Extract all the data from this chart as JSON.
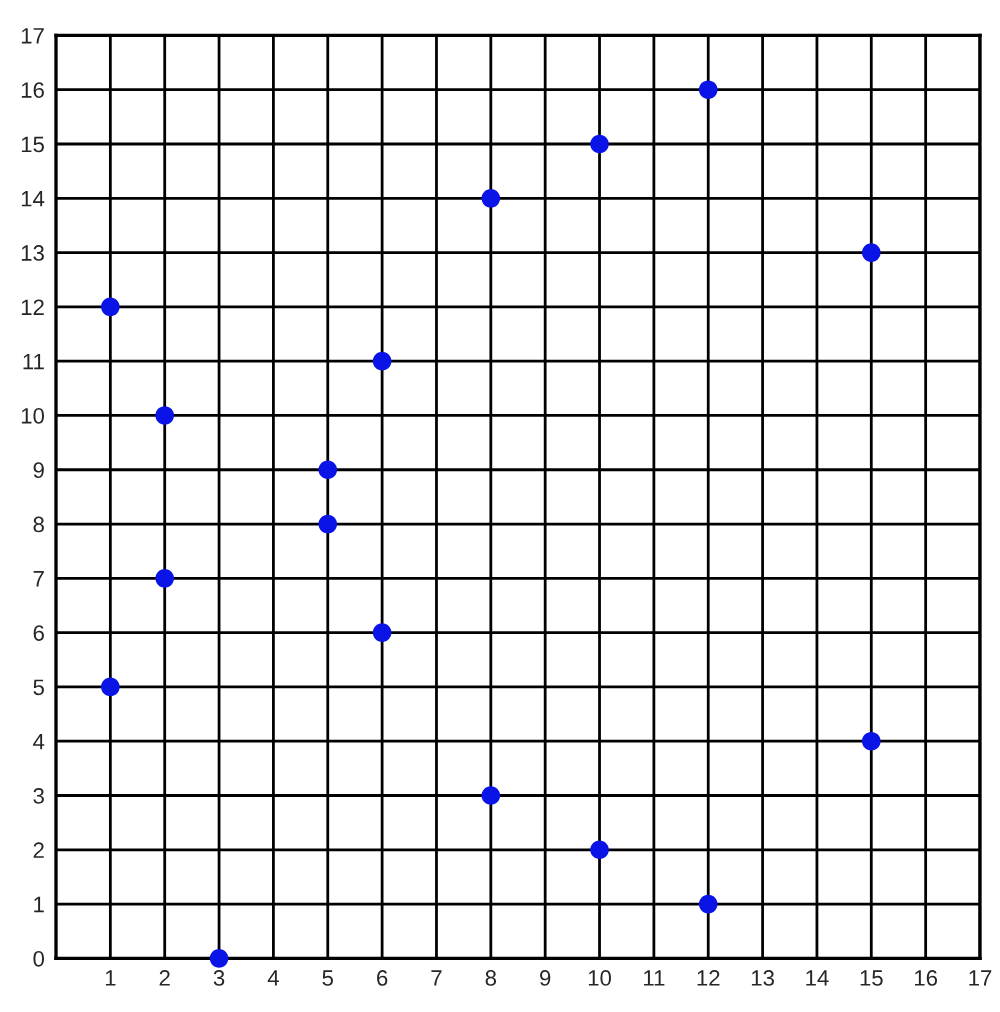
{
  "chart_data": {
    "type": "scatter",
    "x": [
      1,
      1,
      2,
      2,
      3,
      5,
      5,
      6,
      6,
      8,
      8,
      10,
      10,
      12,
      12,
      15,
      15
    ],
    "values": [
      12,
      5,
      10,
      7,
      0,
      9,
      8,
      11,
      6,
      14,
      3,
      15,
      2,
      16,
      1,
      13,
      4
    ],
    "color": "#0a14e6",
    "marker": "circle",
    "xlim": [
      0,
      17
    ],
    "ylim": [
      0,
      17
    ],
    "xticks": [
      1,
      2,
      3,
      4,
      5,
      6,
      7,
      8,
      9,
      10,
      11,
      12,
      13,
      14,
      15,
      16,
      17
    ],
    "yticks": [
      0,
      1,
      2,
      3,
      4,
      5,
      6,
      7,
      8,
      9,
      10,
      11,
      12,
      13,
      14,
      15,
      16,
      17
    ],
    "grid": true
  }
}
